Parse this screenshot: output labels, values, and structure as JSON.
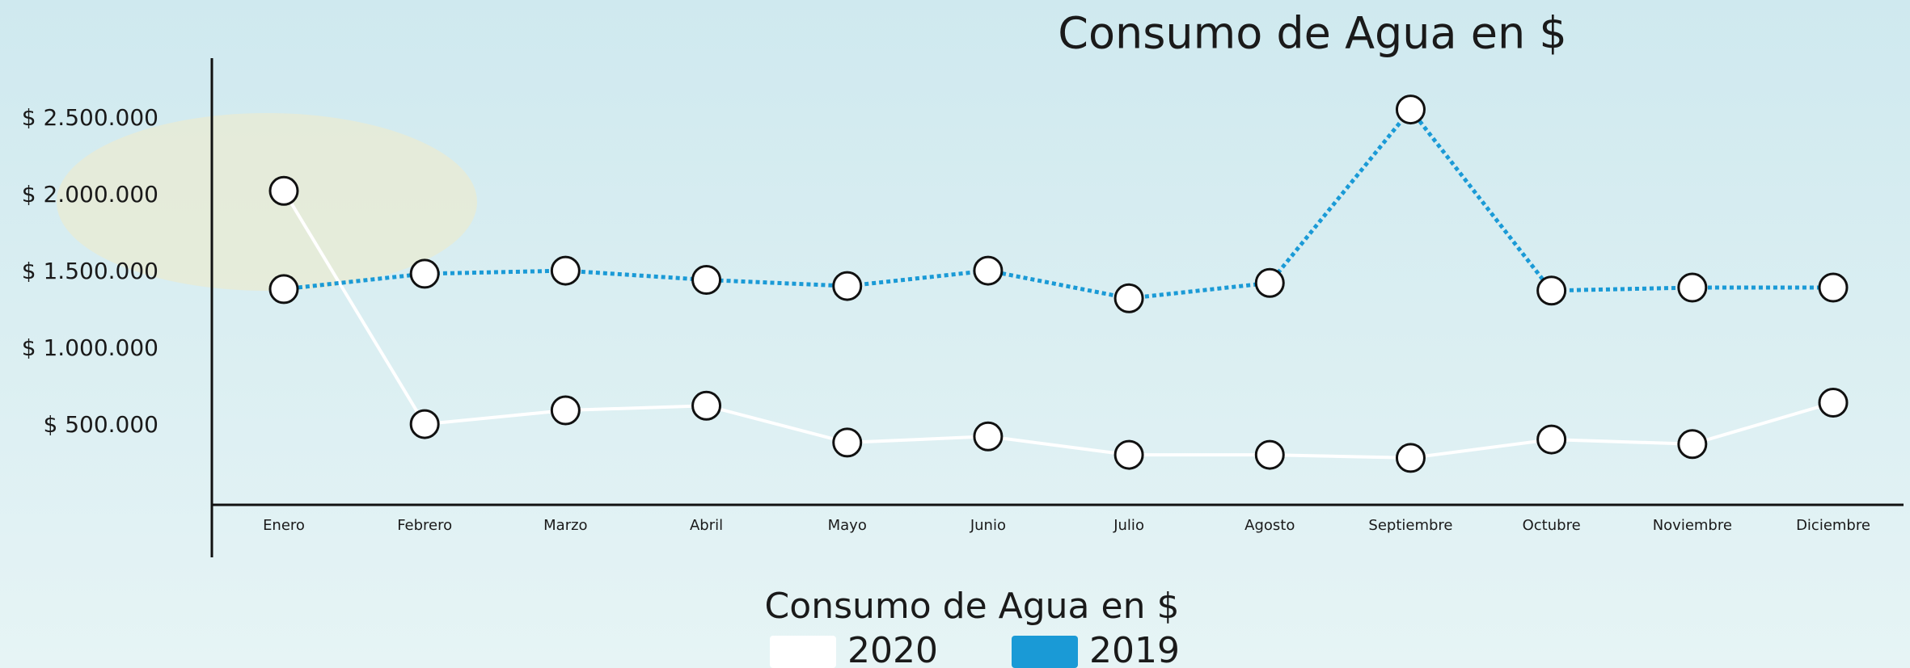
{
  "chart_data": {
    "type": "line",
    "title": "Consumo de Agua en $",
    "legend_title": "Consumo de Agua en $",
    "categories": [
      "Enero",
      "Febrero",
      "Marzo",
      "Abril",
      "Mayo",
      "Junio",
      "Julio",
      "Agosto",
      "Septiembre",
      "Octubre",
      "Noviembre",
      "Diciembre"
    ],
    "series": [
      {
        "name": "2020",
        "color": "#ffffff",
        "dash": "solid",
        "values": [
          2030000,
          510000,
          600000,
          630000,
          390000,
          430000,
          310000,
          310000,
          290000,
          410000,
          380000,
          650000
        ]
      },
      {
        "name": "2019",
        "color": "#1a9ad6",
        "dash": "dotted",
        "values": [
          1390000,
          1490000,
          1510000,
          1450000,
          1410000,
          1510000,
          1330000,
          1430000,
          2560000,
          1380000,
          1400000,
          1400000
        ]
      }
    ],
    "ylim": [
      0,
      2900000
    ],
    "yticks": [
      {
        "value": 500000,
        "label": "$ 500.000"
      },
      {
        "value": 1000000,
        "label": "$ 1.000.000"
      },
      {
        "value": 1500000,
        "label": "$ 1.500.000"
      },
      {
        "value": 2000000,
        "label": "$ 2.000.000"
      },
      {
        "value": 2500000,
        "label": "$ 2.500.000"
      }
    ],
    "grid": false
  }
}
